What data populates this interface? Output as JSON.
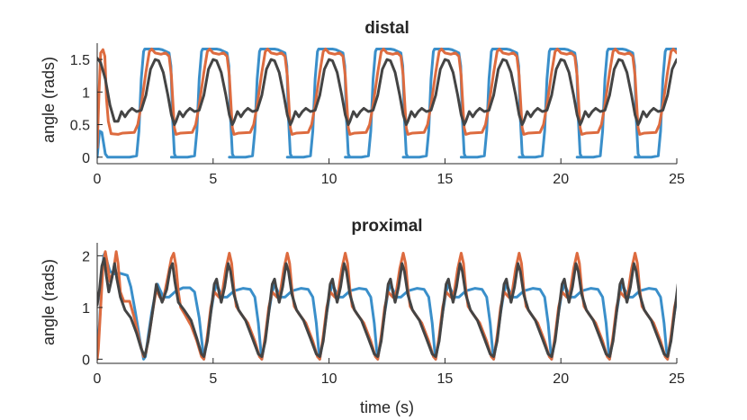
{
  "chart_data": [
    {
      "type": "line",
      "title": "distal",
      "xlabel": "",
      "ylabel": "angle (rads)",
      "xlim": [
        0,
        25
      ],
      "ylim": [
        -0.1,
        1.75
      ],
      "xticks": [
        0,
        5,
        10,
        15,
        20,
        25
      ],
      "yticks": [
        0,
        0.5,
        1,
        1.5
      ],
      "xtick_labels": [
        "0",
        "5",
        "10",
        "15",
        "20",
        "25"
      ],
      "ytick_labels": [
        "0",
        "0.5",
        "1",
        "1.5"
      ],
      "period": 2.5,
      "series": [
        {
          "name": "blue",
          "color": "#3a8fca",
          "transient": [
            [
              0,
              0.0
            ],
            [
              0.1,
              0.4
            ],
            [
              0.2,
              0.38
            ],
            [
              0.35,
              0.05
            ],
            [
              0.45,
              0.0
            ]
          ],
          "cycle": [
            [
              0.45,
              0.0
            ],
            [
              0.7,
              0.0
            ],
            [
              1.4,
              0.0
            ],
            [
              1.7,
              0.02
            ],
            [
              1.8,
              0.4
            ],
            [
              1.9,
              1.2
            ],
            [
              2.0,
              1.62
            ],
            [
              2.05,
              1.66
            ],
            [
              2.65,
              1.66
            ],
            [
              2.8,
              1.65
            ],
            [
              3.1,
              1.6
            ],
            [
              3.18,
              1.4
            ],
            [
              3.25,
              0.6
            ],
            [
              3.33,
              0.05
            ],
            [
              3.4,
              0.0
            ],
            [
              3.45,
              0.0
            ]
          ]
        },
        {
          "name": "orange",
          "color": "#dd6b3f",
          "transient": [
            [
              0,
              0.15
            ],
            [
              0.08,
              1.0
            ],
            [
              0.15,
              1.6
            ],
            [
              0.25,
              1.65
            ],
            [
              0.33,
              1.55
            ],
            [
              0.4,
              0.9
            ],
            [
              0.48,
              0.55
            ],
            [
              0.6,
              0.36
            ],
            [
              0.9,
              0.35
            ]
          ],
          "cycle": [
            [
              0.9,
              0.35
            ],
            [
              1.1,
              0.37
            ],
            [
              1.6,
              0.38
            ],
            [
              1.75,
              0.5
            ],
            [
              1.9,
              0.8
            ],
            [
              2.1,
              1.3
            ],
            [
              2.25,
              1.62
            ],
            [
              2.35,
              1.66
            ],
            [
              2.5,
              1.6
            ],
            [
              2.75,
              1.58
            ],
            [
              2.95,
              1.6
            ],
            [
              3.1,
              1.55
            ],
            [
              3.2,
              1.25
            ],
            [
              3.28,
              0.75
            ],
            [
              3.33,
              0.45
            ],
            [
              3.4,
              0.35
            ]
          ]
        },
        {
          "name": "black",
          "color": "#444444",
          "transient": [
            [
              0,
              1.52
            ],
            [
              0.15,
              1.45
            ],
            [
              0.35,
              1.2
            ],
            [
              0.55,
              0.8
            ],
            [
              0.75,
              0.55
            ],
            [
              0.9,
              0.55
            ]
          ],
          "cycle": [
            [
              0.9,
              0.55
            ],
            [
              1.05,
              0.7
            ],
            [
              1.2,
              0.62
            ],
            [
              1.35,
              0.7
            ],
            [
              1.5,
              0.75
            ],
            [
              1.7,
              0.7
            ],
            [
              1.9,
              0.72
            ],
            [
              2.1,
              0.95
            ],
            [
              2.3,
              1.35
            ],
            [
              2.5,
              1.5
            ],
            [
              2.65,
              1.48
            ],
            [
              2.85,
              1.3
            ],
            [
              3.05,
              0.95
            ],
            [
              3.2,
              0.65
            ],
            [
              3.33,
              0.5
            ],
            [
              3.4,
              0.55
            ]
          ]
        }
      ]
    },
    {
      "type": "line",
      "title": "proximal",
      "xlabel": "time (s)",
      "ylabel": "angle (rads)",
      "xlim": [
        0,
        25
      ],
      "ylim": [
        -0.08,
        2.25
      ],
      "xticks": [
        0,
        5,
        10,
        15,
        20,
        25
      ],
      "yticks": [
        0,
        1,
        2
      ],
      "xtick_labels": [
        "0",
        "5",
        "10",
        "15",
        "20",
        "25"
      ],
      "ytick_labels": [
        "0",
        "1",
        "2"
      ],
      "period": 2.5,
      "series": [
        {
          "name": "blue",
          "color": "#3a8fca",
          "transient": [
            [
              0,
              0.05
            ],
            [
              0.1,
              0.7
            ],
            [
              0.2,
              1.5
            ],
            [
              0.28,
              2.0
            ],
            [
              0.33,
              2.05
            ],
            [
              0.45,
              1.85
            ],
            [
              0.55,
              1.7
            ],
            [
              0.7,
              1.65
            ],
            [
              1.0,
              1.66
            ],
            [
              1.3,
              1.62
            ],
            [
              1.45,
              1.4
            ],
            [
              1.65,
              0.9
            ],
            [
              1.85,
              0.35
            ],
            [
              2.0,
              0.0
            ],
            [
              2.08,
              0.05
            ],
            [
              2.2,
              0.45
            ],
            [
              2.35,
              0.9
            ],
            [
              2.5,
              1.25
            ],
            [
              2.6,
              1.45
            ],
            [
              2.7,
              1.35
            ],
            [
              2.85,
              1.2
            ],
            [
              3.1,
              1.2
            ],
            [
              3.4,
              1.32
            ],
            [
              3.7,
              1.38
            ],
            [
              4.0,
              1.38
            ],
            [
              4.2,
              1.3
            ],
            [
              4.4,
              0.8
            ],
            [
              4.55,
              0.2
            ],
            [
              4.6,
              0.0
            ]
          ],
          "cycle": [
            [
              4.6,
              0.0
            ],
            [
              4.75,
              0.4
            ],
            [
              4.9,
              0.9
            ],
            [
              5.05,
              1.3
            ],
            [
              5.15,
              1.45
            ],
            [
              5.25,
              1.35
            ],
            [
              5.4,
              1.2
            ],
            [
              5.6,
              1.2
            ],
            [
              5.9,
              1.32
            ],
            [
              6.3,
              1.37
            ],
            [
              6.6,
              1.35
            ],
            [
              6.8,
              1.2
            ],
            [
              6.95,
              0.7
            ],
            [
              7.05,
              0.2
            ],
            [
              7.1,
              0.0
            ]
          ]
        },
        {
          "name": "orange",
          "color": "#dd6b3f",
          "transient": [
            [
              0,
              0.0
            ],
            [
              0.05,
              0.2
            ],
            [
              0.15,
              1.0
            ],
            [
              0.25,
              1.8
            ],
            [
              0.35,
              2.08
            ],
            [
              0.42,
              1.9
            ],
            [
              0.55,
              1.5
            ],
            [
              0.7,
              1.7
            ],
            [
              0.82,
              2.08
            ],
            [
              0.9,
              1.85
            ],
            [
              1.0,
              1.3
            ],
            [
              1.15,
              1.12
            ],
            [
              1.4,
              1.12
            ],
            [
              1.6,
              0.8
            ],
            [
              1.85,
              0.3
            ],
            [
              2.0,
              0.05
            ],
            [
              2.1,
              0.12
            ],
            [
              2.25,
              0.5
            ],
            [
              2.4,
              0.95
            ],
            [
              2.55,
              1.35
            ],
            [
              2.7,
              1.2
            ],
            [
              2.85,
              1.15
            ],
            [
              3.05,
              1.6
            ],
            [
              3.2,
              1.95
            ],
            [
              3.3,
              2.05
            ],
            [
              3.4,
              1.8
            ],
            [
              3.5,
              1.3
            ],
            [
              3.6,
              1.0
            ],
            [
              3.8,
              0.85
            ],
            [
              4.05,
              0.65
            ],
            [
              4.3,
              0.35
            ],
            [
              4.5,
              0.05
            ],
            [
              4.6,
              0.0
            ]
          ],
          "cycle": [
            [
              4.6,
              0.0
            ],
            [
              4.75,
              0.45
            ],
            [
              4.9,
              1.0
            ],
            [
              5.05,
              1.3
            ],
            [
              5.25,
              1.2
            ],
            [
              5.4,
              1.3
            ],
            [
              5.55,
              1.75
            ],
            [
              5.7,
              2.05
            ],
            [
              5.8,
              1.85
            ],
            [
              5.9,
              1.35
            ],
            [
              6.0,
              1.02
            ],
            [
              6.2,
              0.88
            ],
            [
              6.5,
              0.7
            ],
            [
              6.8,
              0.35
            ],
            [
              7.0,
              0.05
            ],
            [
              7.1,
              0.0
            ]
          ]
        },
        {
          "name": "black",
          "color": "#444444",
          "transient": [
            [
              0,
              1.05
            ],
            [
              0.1,
              1.35
            ],
            [
              0.2,
              1.8
            ],
            [
              0.3,
              1.95
            ],
            [
              0.4,
              1.6
            ],
            [
              0.5,
              1.3
            ],
            [
              0.65,
              1.6
            ],
            [
              0.75,
              1.85
            ],
            [
              0.85,
              1.55
            ],
            [
              1.0,
              1.2
            ],
            [
              1.2,
              0.95
            ],
            [
              1.45,
              0.8
            ],
            [
              1.7,
              0.5
            ],
            [
              1.9,
              0.2
            ],
            [
              2.05,
              0.05
            ],
            [
              2.2,
              0.35
            ],
            [
              2.4,
              0.95
            ],
            [
              2.55,
              1.45
            ],
            [
              2.65,
              1.3
            ],
            [
              2.8,
              1.1
            ],
            [
              3.0,
              1.35
            ],
            [
              3.15,
              1.75
            ],
            [
              3.25,
              1.85
            ],
            [
              3.35,
              1.5
            ],
            [
              3.5,
              1.1
            ],
            [
              3.75,
              0.95
            ],
            [
              4.05,
              0.75
            ],
            [
              4.3,
              0.4
            ],
            [
              4.5,
              0.1
            ],
            [
              4.6,
              0.05
            ]
          ],
          "cycle": [
            [
              4.6,
              0.05
            ],
            [
              4.75,
              0.35
            ],
            [
              4.9,
              0.9
            ],
            [
              5.05,
              1.45
            ],
            [
              5.15,
              1.55
            ],
            [
              5.25,
              1.3
            ],
            [
              5.35,
              1.1
            ],
            [
              5.5,
              1.4
            ],
            [
              5.65,
              1.85
            ],
            [
              5.75,
              1.7
            ],
            [
              5.9,
              1.25
            ],
            [
              6.1,
              0.95
            ],
            [
              6.4,
              0.75
            ],
            [
              6.7,
              0.4
            ],
            [
              6.95,
              0.1
            ],
            [
              7.1,
              0.05
            ]
          ]
        }
      ]
    }
  ]
}
